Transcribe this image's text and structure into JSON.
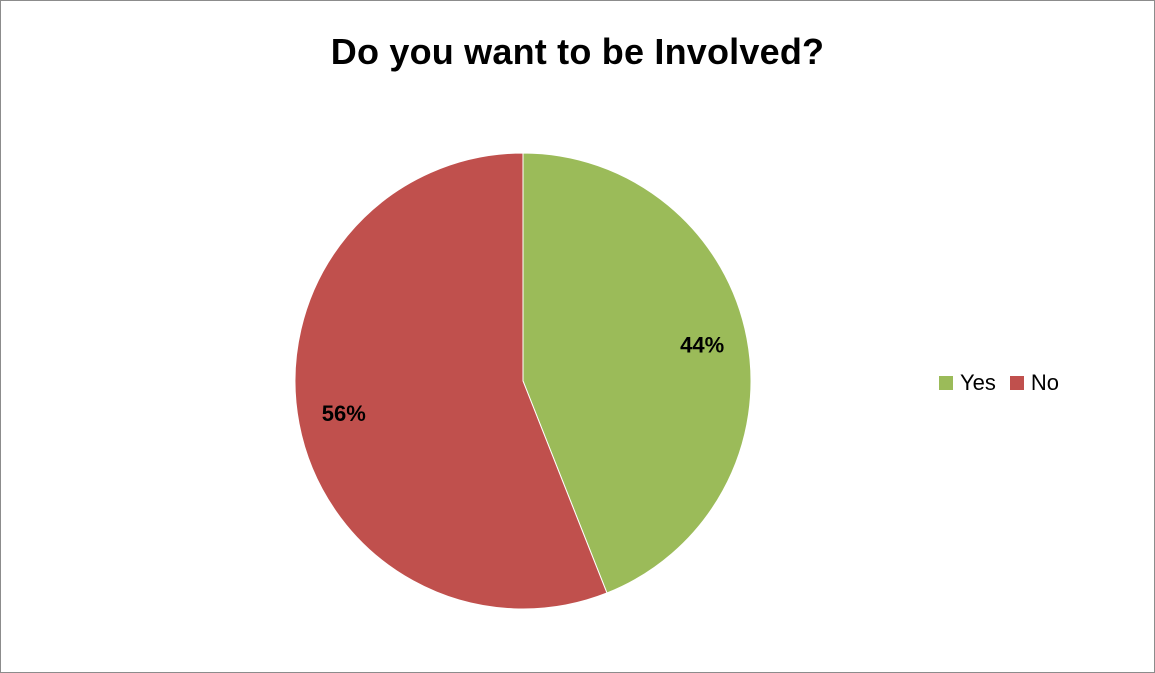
{
  "chart_data": {
    "type": "pie",
    "title": "Do you want to be Involved?",
    "categories": [
      "Yes",
      "No"
    ],
    "values": [
      44,
      56
    ],
    "labels": [
      "44%",
      "56%"
    ],
    "colors": [
      "#9bbb59",
      "#c0504d"
    ],
    "start_angle": "12 o'clock",
    "direction": "clockwise",
    "legend": {
      "position": "right",
      "entries": [
        "Yes",
        "No"
      ]
    }
  }
}
